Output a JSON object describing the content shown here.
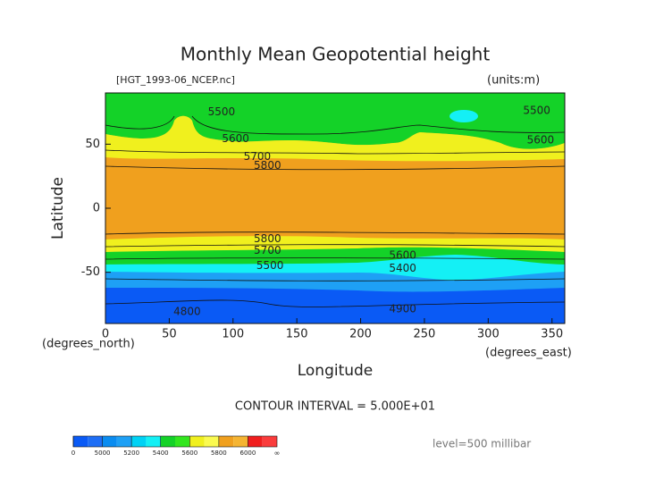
{
  "chart_data": {
    "type": "contour",
    "title": "Monthly Mean Geopotential height",
    "subtitle": "[HGT_1993-06_NCEP.nc]",
    "units_label": "(units:m)",
    "x_label": "Longitude",
    "y_label": "Latitude",
    "x_unit_label": "(degrees_east)",
    "y_unit_label": "(degrees_north)",
    "xlim": [
      0,
      360
    ],
    "ylim": [
      -90,
      90
    ],
    "xticks": [
      0,
      50,
      100,
      150,
      200,
      250,
      300,
      350
    ],
    "yticks": [
      -50,
      0,
      50
    ],
    "contour_labels": [
      {
        "value": 5500,
        "lon": 91,
        "lat": 75
      },
      {
        "value": 5600,
        "lon": 102,
        "lat": 54
      },
      {
        "value": 5700,
        "lon": 119,
        "lat": 40
      },
      {
        "value": 5800,
        "lon": 127,
        "lat": 33
      },
      {
        "value": 5800,
        "lon": 127,
        "lat": -24
      },
      {
        "value": 5700,
        "lon": 127,
        "lat": -33
      },
      {
        "value": 5500,
        "lon": 129,
        "lat": -45
      },
      {
        "value": 5600,
        "lon": 233,
        "lat": -37
      },
      {
        "value": 5400,
        "lon": 233,
        "lat": -47
      },
      {
        "value": 4800,
        "lon": 64,
        "lat": -81
      },
      {
        "value": 4900,
        "lon": 233,
        "lat": -79
      },
      {
        "value": 5500,
        "lon": 338,
        "lat": 76
      },
      {
        "value": 5600,
        "lon": 341,
        "lat": 53
      }
    ],
    "contour_interval_label": "CONTOUR INTERVAL = 5.000E+01",
    "level_label": "level=500 millibar",
    "colorbar": {
      "colors": [
        "#0a5af5",
        "#1e6ef5",
        "#0a8cf0",
        "#1ea0f5",
        "#00d2f5",
        "#14f0f5",
        "#14d228",
        "#32e61e",
        "#f0f01e",
        "#fafa50",
        "#f0a01e",
        "#f5b432",
        "#f01e1e",
        "#fa3c3c"
      ],
      "ticks": [
        0,
        5000,
        5200,
        5400,
        5600,
        5800,
        6000
      ],
      "end_label": "∞"
    }
  }
}
